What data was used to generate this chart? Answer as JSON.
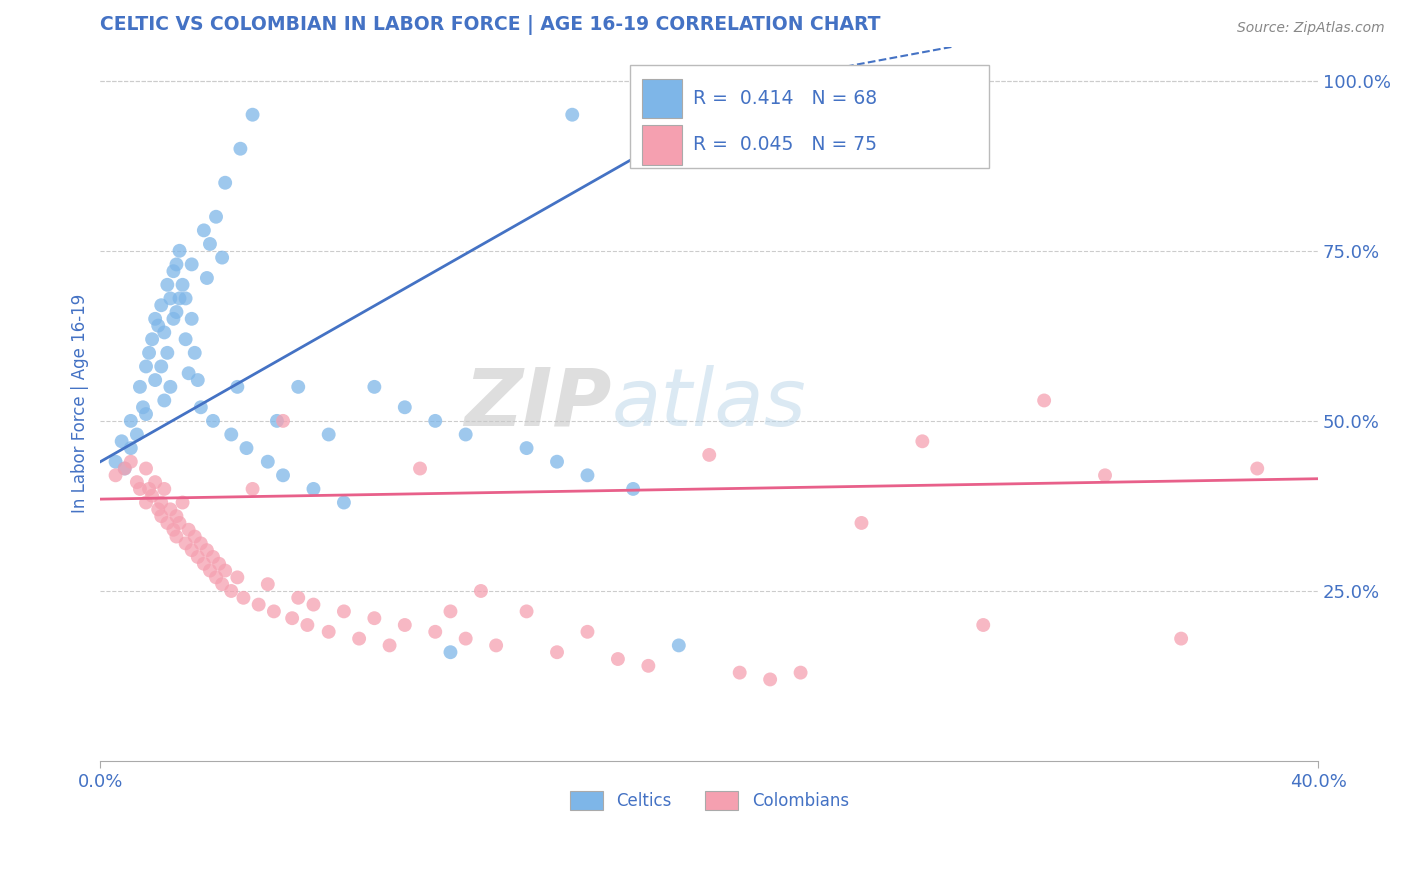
{
  "title": "CELTIC VS COLOMBIAN IN LABOR FORCE | AGE 16-19 CORRELATION CHART",
  "source_text": "Source: ZipAtlas.com",
  "ylabel": "In Labor Force | Age 16-19",
  "xlim": [
    0.0,
    0.4
  ],
  "ylim": [
    0.0,
    1.05
  ],
  "y_ticks": [
    0.25,
    0.5,
    0.75,
    1.0
  ],
  "y_tick_labels": [
    "25.0%",
    "50.0%",
    "75.0%",
    "100.0%"
  ],
  "celtic_color": "#7EB6E8",
  "colombian_color": "#F5A0B0",
  "celtic_line_color": "#4472C4",
  "colombian_line_color": "#E8608A",
  "R_celtic": 0.414,
  "N_celtic": 68,
  "R_colombian": 0.045,
  "N_colombian": 75,
  "watermark_zip": "ZIP",
  "watermark_atlas": "atlas",
  "background_color": "#FFFFFF",
  "grid_color": "#CCCCCC",
  "title_color": "#4472C4",
  "axis_label_color": "#4472C4",
  "tick_color": "#4472C4",
  "celtic_scatter_x": [
    0.005,
    0.007,
    0.008,
    0.01,
    0.01,
    0.012,
    0.013,
    0.014,
    0.015,
    0.015,
    0.016,
    0.017,
    0.018,
    0.018,
    0.019,
    0.02,
    0.02,
    0.021,
    0.021,
    0.022,
    0.022,
    0.023,
    0.023,
    0.024,
    0.024,
    0.025,
    0.025,
    0.026,
    0.026,
    0.027,
    0.028,
    0.028,
    0.029,
    0.03,
    0.03,
    0.031,
    0.032,
    0.033,
    0.034,
    0.035,
    0.036,
    0.037,
    0.038,
    0.04,
    0.041,
    0.043,
    0.045,
    0.046,
    0.048,
    0.05,
    0.055,
    0.058,
    0.06,
    0.065,
    0.07,
    0.075,
    0.08,
    0.09,
    0.1,
    0.11,
    0.115,
    0.12,
    0.14,
    0.15,
    0.155,
    0.16,
    0.175,
    0.19
  ],
  "celtic_scatter_y": [
    0.44,
    0.47,
    0.43,
    0.46,
    0.5,
    0.48,
    0.55,
    0.52,
    0.51,
    0.58,
    0.6,
    0.62,
    0.56,
    0.65,
    0.64,
    0.67,
    0.58,
    0.53,
    0.63,
    0.7,
    0.6,
    0.55,
    0.68,
    0.72,
    0.65,
    0.66,
    0.73,
    0.68,
    0.75,
    0.7,
    0.68,
    0.62,
    0.57,
    0.73,
    0.65,
    0.6,
    0.56,
    0.52,
    0.78,
    0.71,
    0.76,
    0.5,
    0.8,
    0.74,
    0.85,
    0.48,
    0.55,
    0.9,
    0.46,
    0.95,
    0.44,
    0.5,
    0.42,
    0.55,
    0.4,
    0.48,
    0.38,
    0.55,
    0.52,
    0.5,
    0.16,
    0.48,
    0.46,
    0.44,
    0.95,
    0.42,
    0.4,
    0.17
  ],
  "colombian_scatter_x": [
    0.005,
    0.008,
    0.01,
    0.012,
    0.013,
    0.015,
    0.015,
    0.016,
    0.017,
    0.018,
    0.019,
    0.02,
    0.02,
    0.021,
    0.022,
    0.023,
    0.024,
    0.025,
    0.025,
    0.026,
    0.027,
    0.028,
    0.029,
    0.03,
    0.031,
    0.032,
    0.033,
    0.034,
    0.035,
    0.036,
    0.037,
    0.038,
    0.039,
    0.04,
    0.041,
    0.043,
    0.045,
    0.047,
    0.05,
    0.052,
    0.055,
    0.057,
    0.06,
    0.063,
    0.065,
    0.068,
    0.07,
    0.075,
    0.08,
    0.085,
    0.09,
    0.095,
    0.1,
    0.105,
    0.11,
    0.115,
    0.12,
    0.125,
    0.13,
    0.14,
    0.15,
    0.16,
    0.17,
    0.18,
    0.2,
    0.21,
    0.22,
    0.23,
    0.25,
    0.27,
    0.29,
    0.31,
    0.33,
    0.355,
    0.38
  ],
  "colombian_scatter_y": [
    0.42,
    0.43,
    0.44,
    0.41,
    0.4,
    0.43,
    0.38,
    0.4,
    0.39,
    0.41,
    0.37,
    0.38,
    0.36,
    0.4,
    0.35,
    0.37,
    0.34,
    0.36,
    0.33,
    0.35,
    0.38,
    0.32,
    0.34,
    0.31,
    0.33,
    0.3,
    0.32,
    0.29,
    0.31,
    0.28,
    0.3,
    0.27,
    0.29,
    0.26,
    0.28,
    0.25,
    0.27,
    0.24,
    0.4,
    0.23,
    0.26,
    0.22,
    0.5,
    0.21,
    0.24,
    0.2,
    0.23,
    0.19,
    0.22,
    0.18,
    0.21,
    0.17,
    0.2,
    0.43,
    0.19,
    0.22,
    0.18,
    0.25,
    0.17,
    0.22,
    0.16,
    0.19,
    0.15,
    0.14,
    0.45,
    0.13,
    0.12,
    0.13,
    0.35,
    0.47,
    0.2,
    0.53,
    0.42,
    0.18,
    0.43
  ]
}
